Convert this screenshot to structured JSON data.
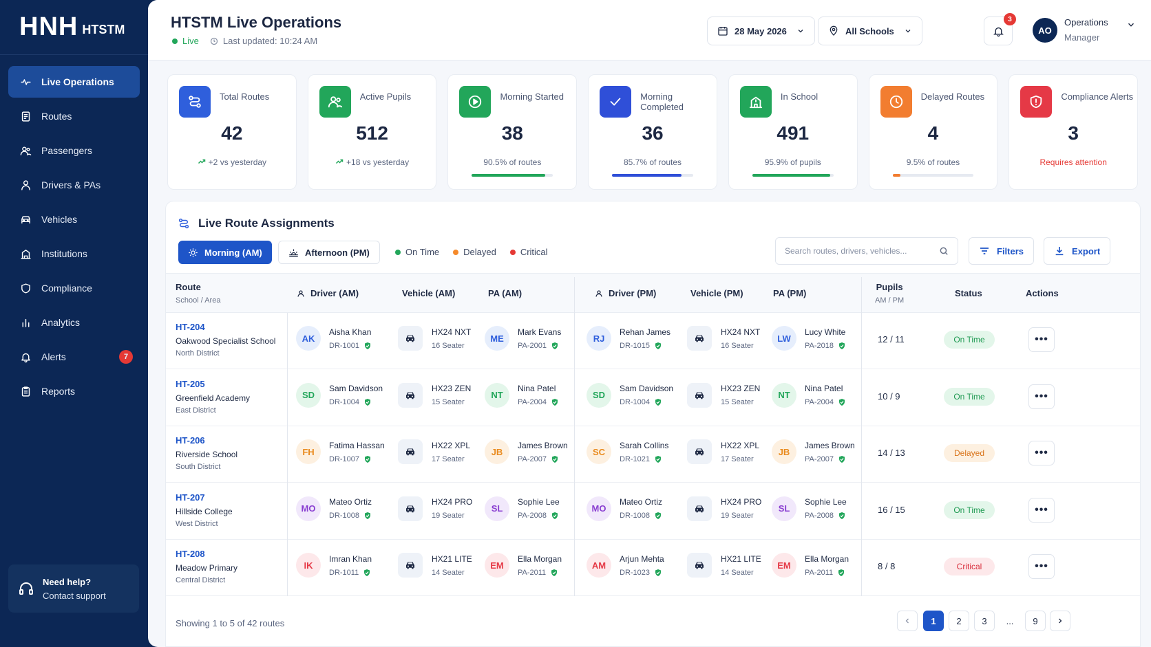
{
  "brand": {
    "main": "HNH",
    "sub": "HTSTM"
  },
  "sidebar": {
    "items": [
      {
        "label": "Live Operations",
        "icon": "pulse-icon",
        "active": true
      },
      {
        "label": "Routes",
        "icon": "routes-icon"
      },
      {
        "label": "Passengers",
        "icon": "users-icon"
      },
      {
        "label": "Drivers & PAs",
        "icon": "driver-icon"
      },
      {
        "label": "Vehicles",
        "icon": "car-icon"
      },
      {
        "label": "Institutions",
        "icon": "building-icon"
      },
      {
        "label": "Compliance",
        "icon": "shield-icon"
      },
      {
        "label": "Analytics",
        "icon": "bar-chart-icon"
      },
      {
        "label": "Alerts",
        "icon": "bell-icon",
        "badge": "7"
      },
      {
        "label": "Reports",
        "icon": "clipboard-icon"
      }
    ],
    "help": {
      "title": "Need help?",
      "subtitle": "Contact support"
    }
  },
  "header": {
    "title": "HTSTM Live Operations",
    "live": "Live",
    "updated": "Last updated: 10:24 AM",
    "date": "28 May 2026",
    "school": "All Schools",
    "notif_count": "3",
    "user_initials": "AO",
    "user_line1": "Operations",
    "user_line2": "Manager"
  },
  "cards": [
    {
      "label": "Total Routes",
      "value": "42",
      "foot": "+2 vs yesterday",
      "color": "#2f5fdc",
      "icon": "route-icon"
    },
    {
      "label": "Active Pupils",
      "value": "512",
      "foot": "+18 vs yesterday",
      "color": "#22a65a",
      "icon": "users-icon"
    },
    {
      "label": "Morning Started",
      "value": "38",
      "foot": "90.5% of routes",
      "color": "#22a65a",
      "icon": "play-icon",
      "progress": 0.905
    },
    {
      "label": "Morning Completed",
      "value": "36",
      "foot": "85.7% of routes",
      "color": "#2f4fd8",
      "icon": "check-icon",
      "progress": 0.857
    },
    {
      "label": "In School",
      "value": "491",
      "foot": "95.9% of pupils",
      "color": "#22a65a",
      "icon": "school-icon",
      "progress": 0.959
    },
    {
      "label": "Delayed Routes",
      "value": "4",
      "foot": "9.5% of routes",
      "color": "#f27d30",
      "icon": "clock-icon",
      "progress": 0.095
    },
    {
      "label": "Compliance Alerts",
      "value": "3",
      "foot": "Requires attention",
      "color": "#e53946",
      "icon": "shield-alert-icon"
    }
  ],
  "panel": {
    "title": "Live Route Assignments",
    "tab_am": "Morning (AM)",
    "tab_pm": "Afternoon (PM)",
    "legend": [
      "On Time",
      "Delayed",
      "Critical"
    ],
    "search_placeholder": "Search routes, drivers, vehicles...",
    "filters": "Filters",
    "export": "Export",
    "columns": {
      "route": "Route",
      "route_sub": "School / Area",
      "driver_am": "Driver (AM)",
      "vehicle_am": "Vehicle (AM)",
      "pa_am": "PA (AM)",
      "driver_pm": "Driver (PM)",
      "vehicle_pm": "Vehicle (PM)",
      "pa_pm": "PA (PM)",
      "pupils": "Pupils",
      "pupils_sub": "AM / PM",
      "status": "Status",
      "actions": "Actions"
    },
    "rows": [
      {
        "id": "HT-204",
        "school": "Oakwood Specialist School",
        "area": "North District",
        "am_driver": {
          "i": "AK",
          "n": "Aisha Khan",
          "c": "DR-1001"
        },
        "am_vehicle": {
          "n": "HX24 NXT",
          "c": "16 Seater"
        },
        "am_pa": {
          "i": "ME",
          "n": "Mark Evans",
          "c": "PA-2001"
        },
        "pm_driver": {
          "i": "RJ",
          "n": "Rehan James",
          "c": "DR-1015"
        },
        "pm_vehicle": {
          "n": "HX24 NXT",
          "c": "16 Seater"
        },
        "pm_pa": {
          "i": "LW",
          "n": "Lucy White",
          "c": "PA-2018"
        },
        "pupils": "12 / 11",
        "status": "On Time"
      },
      {
        "id": "HT-205",
        "school": "Greenfield Academy",
        "area": "East District",
        "am_driver": {
          "i": "SD",
          "n": "Sam Davidson",
          "c": "DR-1004"
        },
        "am_vehicle": {
          "n": "HX23 ZEN",
          "c": "15 Seater"
        },
        "am_pa": {
          "i": "NT",
          "n": "Nina Patel",
          "c": "PA-2004"
        },
        "pm_driver": {
          "i": "SD",
          "n": "Sam Davidson",
          "c": "DR-1004"
        },
        "pm_vehicle": {
          "n": "HX23 ZEN",
          "c": "15 Seater"
        },
        "pm_pa": {
          "i": "NT",
          "n": "Nina Patel",
          "c": "PA-2004"
        },
        "pupils": "10 / 9",
        "status": "On Time"
      },
      {
        "id": "HT-206",
        "school": "Riverside School",
        "area": "South District",
        "am_driver": {
          "i": "FH",
          "n": "Fatima Hassan",
          "c": "DR-1007"
        },
        "am_vehicle": {
          "n": "HX22 XPL",
          "c": "17 Seater"
        },
        "am_pa": {
          "i": "JB",
          "n": "James Brown",
          "c": "PA-2007"
        },
        "pm_driver": {
          "i": "SC",
          "n": "Sarah Collins",
          "c": "DR-1021"
        },
        "pm_vehicle": {
          "n": "HX22 XPL",
          "c": "17 Seater"
        },
        "pm_pa": {
          "i": "JB",
          "n": "James Brown",
          "c": "PA-2007"
        },
        "pupils": "14 / 13",
        "status": "Delayed"
      },
      {
        "id": "HT-207",
        "school": "Hillside College",
        "area": "West District",
        "am_driver": {
          "i": "MO",
          "n": "Mateo Ortiz",
          "c": "DR-1008"
        },
        "am_vehicle": {
          "n": "HX24 PRO",
          "c": "19 Seater"
        },
        "am_pa": {
          "i": "SL",
          "n": "Sophie Lee",
          "c": "PA-2008"
        },
        "pm_driver": {
          "i": "MO",
          "n": "Mateo Ortiz",
          "c": "DR-1008"
        },
        "pm_vehicle": {
          "n": "HX24 PRO",
          "c": "19 Seater"
        },
        "pm_pa": {
          "i": "SL",
          "n": "Sophie Lee",
          "c": "PA-2008"
        },
        "pupils": "16 / 15",
        "status": "On Time"
      },
      {
        "id": "HT-208",
        "school": "Meadow Primary",
        "area": "Central District",
        "am_driver": {
          "i": "IK",
          "n": "Imran Khan",
          "c": "DR-1011"
        },
        "am_vehicle": {
          "n": "HX21 LITE",
          "c": "14 Seater"
        },
        "am_pa": {
          "i": "EM",
          "n": "Ella Morgan",
          "c": "PA-2011"
        },
        "pm_driver": {
          "i": "AM",
          "n": "Arjun Mehta",
          "c": "DR-1023"
        },
        "pm_vehicle": {
          "n": "HX21 LITE",
          "c": "14 Seater"
        },
        "pm_pa": {
          "i": "EM",
          "n": "Ella Morgan",
          "c": "PA-2011"
        },
        "pupils": "8 / 8",
        "status": "Critical"
      }
    ],
    "showing": "Showing 1 to 5 of 42 routes",
    "pages": [
      "1",
      "2",
      "3",
      "...",
      "9"
    ]
  }
}
